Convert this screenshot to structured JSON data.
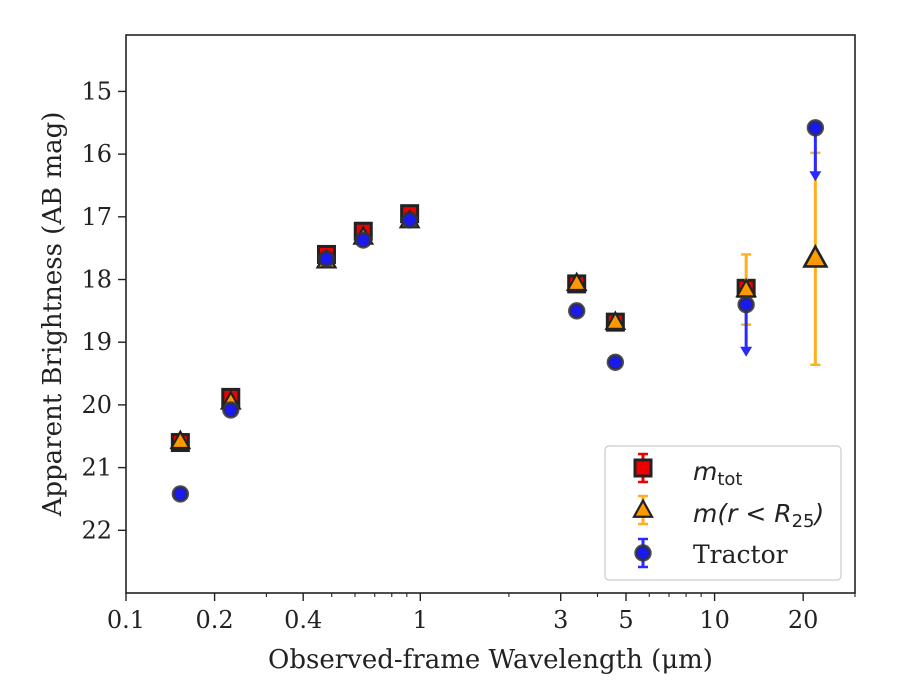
{
  "chart_data": {
    "type": "scatter",
    "xlabel": "Observed-frame Wavelength (μm)",
    "ylabel": "Apparent Brightness (AB mag)",
    "x_scale": "log",
    "xlim": [
      0.1,
      30
    ],
    "ylim": [
      23.0,
      14.1
    ],
    "y_inverted": true,
    "x_ticks": [
      {
        "value": 0.1,
        "label": "0.1"
      },
      {
        "value": 0.2,
        "label": "0.2"
      },
      {
        "value": 0.4,
        "label": "0.4"
      },
      {
        "value": 1,
        "label": "1"
      },
      {
        "value": 3,
        "label": "3"
      },
      {
        "value": 5,
        "label": "5"
      },
      {
        "value": 10,
        "label": "10"
      },
      {
        "value": 20,
        "label": "20"
      }
    ],
    "y_ticks": [
      {
        "value": 15,
        "label": "15"
      },
      {
        "value": 16,
        "label": "16"
      },
      {
        "value": 17,
        "label": "17"
      },
      {
        "value": 18,
        "label": "18"
      },
      {
        "value": 19,
        "label": "19"
      },
      {
        "value": 20,
        "label": "20"
      },
      {
        "value": 21,
        "label": "21"
      },
      {
        "value": 22,
        "label": "22"
      }
    ],
    "legend_position": "lower right",
    "series": [
      {
        "name": "m_tot",
        "label_base": "m",
        "label_sub": "tot",
        "marker": "square",
        "color": "#ee0000",
        "ecolor": "#ee0000",
        "points": [
          {
            "x": 0.153,
            "y": 20.6,
            "err": 0.04
          },
          {
            "x": 0.227,
            "y": 19.88,
            "err": 0.05
          },
          {
            "x": 0.48,
            "y": 17.6,
            "err": 0.04
          },
          {
            "x": 0.64,
            "y": 17.23,
            "err": 0.05
          },
          {
            "x": 0.92,
            "y": 16.95,
            "err": 0.05
          },
          {
            "x": 3.4,
            "y": 18.07,
            "err": 0.05
          },
          {
            "x": 4.6,
            "y": 18.68,
            "err": 0.05
          },
          {
            "x": 12.8,
            "y": 18.14,
            "err": 0.05
          }
        ]
      },
      {
        "name": "m(r<R25)",
        "label_base": "m(r < R",
        "label_sub": "25",
        "label_end": ")",
        "marker": "triangle",
        "color": "#ff9900",
        "ecolor": "#ffb020",
        "points": [
          {
            "x": 0.153,
            "y": 20.58,
            "err": 0.03
          },
          {
            "x": 0.227,
            "y": 19.95,
            "err": 0.03
          },
          {
            "x": 0.48,
            "y": 17.7,
            "err": 0.03
          },
          {
            "x": 0.64,
            "y": 17.32,
            "err": 0.03
          },
          {
            "x": 0.92,
            "y": 17.06,
            "err": 0.03
          },
          {
            "x": 3.4,
            "y": 18.06,
            "err": 0.03
          },
          {
            "x": 4.6,
            "y": 18.68,
            "err": 0.03
          },
          {
            "x": 12.8,
            "y": 18.16,
            "err": 0.56
          },
          {
            "x": 22.0,
            "y": 17.66,
            "err_low": 1.7,
            "err_high": 1.68
          }
        ]
      },
      {
        "name": "Tractor",
        "label_base": "Tractor",
        "marker": "circle",
        "color": "#1a1aee",
        "ecolor": "#2a2aff",
        "points": [
          {
            "x": 0.153,
            "y": 21.42,
            "err": 0.06
          },
          {
            "x": 0.227,
            "y": 20.08,
            "err": 0.05
          },
          {
            "x": 0.48,
            "y": 17.67,
            "err": 0.05
          },
          {
            "x": 0.64,
            "y": 17.37,
            "err": 0.05
          },
          {
            "x": 0.92,
            "y": 17.05,
            "err": 0.05
          },
          {
            "x": 3.4,
            "y": 18.5,
            "err": 0.05
          },
          {
            "x": 4.6,
            "y": 19.32,
            "err": 0.05
          },
          {
            "x": 12.8,
            "y": 18.4,
            "upper_limit": true,
            "arrow_to": 19.2
          },
          {
            "x": 22.0,
            "y": 15.58,
            "upper_limit": true,
            "arrow_to": 16.4
          }
        ]
      }
    ]
  }
}
